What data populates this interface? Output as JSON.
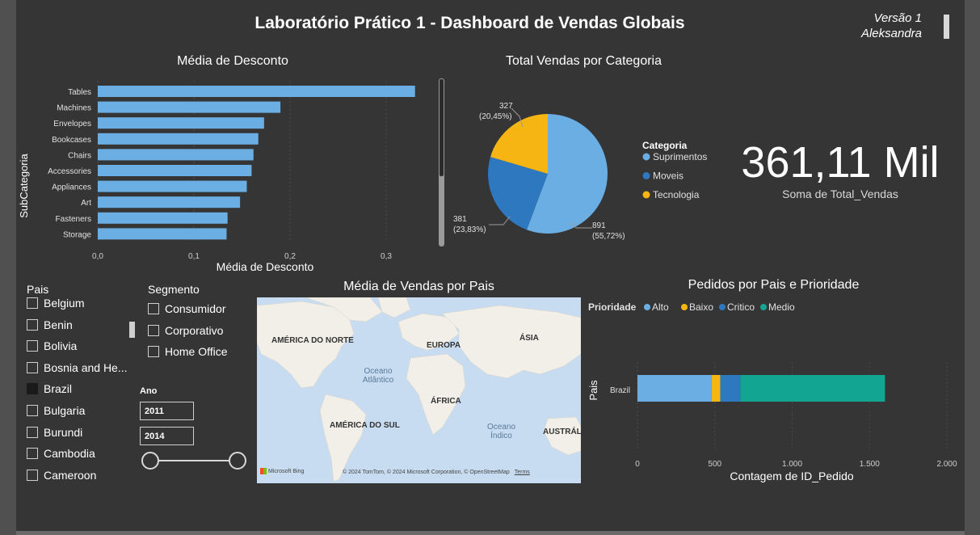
{
  "header": {
    "title": "Laboratório Prático 1 - Dashboard de Vendas Globais",
    "version": "Versão 1",
    "author": "Aleksandra"
  },
  "discount_chart": {
    "title": "Média de Desconto",
    "xlabel": "Média de Desconto",
    "ylabel": "SubCategoria",
    "ticks": [
      "0,0",
      "0,1",
      "0,2",
      "0,3"
    ],
    "color": "#6aaee3"
  },
  "category_chart": {
    "title": "Total Vendas por Categoria",
    "legend_title": "Categoria",
    "labels": [
      {
        "value": "891",
        "pct": "(55,72%)"
      },
      {
        "value": "381",
        "pct": "(23,83%)"
      },
      {
        "value": "327",
        "pct": "(20,45%)"
      }
    ],
    "colors": [
      "#6aaee3",
      "#2e78c0",
      "#f7b514"
    ]
  },
  "kpi": {
    "value": "361,11 Mil",
    "label": "Soma de Total_Vendas"
  },
  "pais_slicer": {
    "title": "Pais",
    "items": [
      {
        "label": "Belgium",
        "checked": false
      },
      {
        "label": "Benin",
        "checked": false
      },
      {
        "label": "Bolivia",
        "checked": false
      },
      {
        "label": "Bosnia and He...",
        "checked": false
      },
      {
        "label": "Brazil",
        "checked": true
      },
      {
        "label": "Bulgaria",
        "checked": false
      },
      {
        "label": "Burundi",
        "checked": false
      },
      {
        "label": "Cambodia",
        "checked": false
      },
      {
        "label": "Cameroon",
        "checked": false
      }
    ]
  },
  "segmento_slicer": {
    "title": "Segmento",
    "items": [
      {
        "label": "Consumidor"
      },
      {
        "label": "Corporativo"
      },
      {
        "label": "Home Office"
      }
    ]
  },
  "ano_slicer": {
    "title": "Ano",
    "start": "2011",
    "end": "2014"
  },
  "map": {
    "title": "Média de Vendas por Pais",
    "labels": {
      "north_america": "AMÉRICA DO NORTE",
      "europe": "EUROPA",
      "asia": "ÁSIA",
      "ocean_atlantic_1": "Oceano",
      "ocean_atlantic_2": "Atlântico",
      "africa": "ÁFRICA",
      "south_america": "AMÉRICA DO SUL",
      "ocean_indian_1": "Oceano",
      "ocean_indian_2": "Índico",
      "australia": "AUSTRÁL"
    },
    "logo": "Microsoft Bing",
    "attribution": "© 2024 TomTom, © 2024 Microsoft Corporation, © OpenStreetMap",
    "terms": "Terms"
  },
  "priority_chart": {
    "title": "Pedidos por Pais e Prioridade",
    "legend_title": "Prioridade",
    "xlabel": "Contagem de ID_Pedido",
    "ylabel": "Pais",
    "ticks": [
      "0",
      "500",
      "1.000",
      "1.500",
      "2.000"
    ],
    "category": "Brazil"
  },
  "chart_data": [
    {
      "type": "bar",
      "title": "Média de Desconto",
      "categories": [
        "Tables",
        "Machines",
        "Envelopes",
        "Bookcases",
        "Chairs",
        "Accessories",
        "Appliances",
        "Art",
        "Fasteners",
        "Storage"
      ],
      "values": [
        0.33,
        0.19,
        0.173,
        0.167,
        0.162,
        0.16,
        0.155,
        0.148,
        0.135,
        0.134
      ],
      "xlabel": "Média de Desconto",
      "ylabel": "SubCategoria",
      "xlim": [
        0,
        0.35
      ],
      "orientation": "horizontal"
    },
    {
      "type": "pie",
      "title": "Total Vendas por Categoria",
      "categories": [
        "Suprimentos",
        "Moveis",
        "Tecnologia"
      ],
      "values": [
        891,
        381,
        327
      ],
      "legend": "right"
    },
    {
      "type": "bar",
      "title": "Pedidos por Pais e Prioridade",
      "categories": [
        "Brazil"
      ],
      "stacked": true,
      "orientation": "horizontal",
      "series": [
        {
          "name": "Alto",
          "values": [
            480
          ],
          "color": "#6aaee3"
        },
        {
          "name": "Baixo",
          "values": [
            55
          ],
          "color": "#f7b514"
        },
        {
          "name": "Critico",
          "values": [
            130
          ],
          "color": "#2e78c0"
        },
        {
          "name": "Medio",
          "values": [
            935
          ],
          "color": "#12a591"
        }
      ],
      "xlabel": "Contagem de ID_Pedido",
      "ylabel": "Pais",
      "xlim": [
        0,
        2000
      ]
    }
  ]
}
